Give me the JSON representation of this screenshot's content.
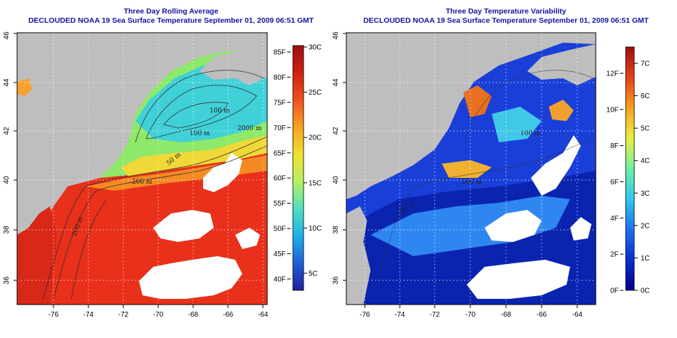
{
  "left_panel": {
    "title_line1": "Three Day Rolling Average",
    "title_line2": "DECLOUDED NOAA 19 Sea Surface Temperature September 01, 2009 06:51 GMT",
    "colorbar": {
      "left_labels": [
        "85F",
        "80F",
        "75F",
        "70F",
        "65F",
        "60F",
        "55F",
        "50F",
        "45F",
        "40F"
      ],
      "right_labels": [
        "30C",
        "25C",
        "20C",
        "15C",
        "10C",
        "5C"
      ],
      "colors": [
        "#2020a0",
        "#1e5fd8",
        "#1fb0e8",
        "#4fe0c0",
        "#b8f060",
        "#f0e030",
        "#f8a020",
        "#f05020",
        "#d02010",
        "#a01010"
      ]
    },
    "contour_labels": [
      "100 m",
      "100 m",
      "2000 m",
      "200 m",
      "200 m",
      "50 m"
    ]
  },
  "right_panel": {
    "title_line1": "Three Day Temperature Variability",
    "title_line2": "DECLOUDED NOAA 19 Sea Surface Temperature September 01, 2009 06:51 GMT",
    "colorbar": {
      "left_labels": [
        "12F",
        "10F",
        "8F",
        "6F",
        "4F",
        "2F",
        "0F"
      ],
      "right_labels": [
        "7C",
        "6C",
        "5C",
        "4C",
        "3C",
        "2C",
        "1C",
        "0C"
      ],
      "colors": [
        "#00008c",
        "#0a2fd0",
        "#1e70f0",
        "#30c8f0",
        "#70f0a0",
        "#e8f040",
        "#f8a020",
        "#e84018",
        "#a01010"
      ]
    },
    "contour_labels": [
      "100 m",
      "200 m",
      "50 m"
    ]
  },
  "axes": {
    "x_ticks": [
      "-76",
      "-74",
      "-72",
      "-70",
      "-68",
      "-66",
      "-64"
    ],
    "y_ticks": [
      "36",
      "38",
      "40",
      "42",
      "44",
      "46"
    ]
  },
  "colors": {
    "land": "#bebebe",
    "cloud": "#ffffff",
    "title": "#1414a0"
  }
}
